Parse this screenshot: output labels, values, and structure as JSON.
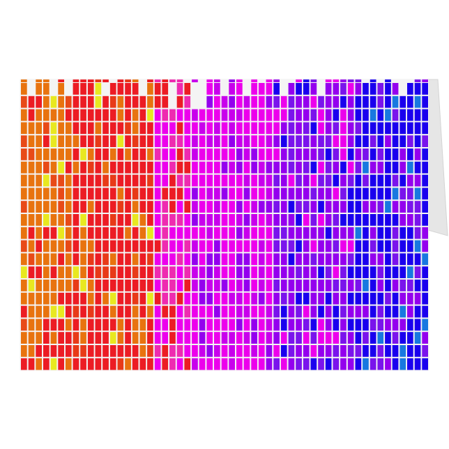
{
  "card": {
    "background_color": "#ffffff",
    "panel_color": "#f4f4f4",
    "grid_line_color": "#ffffff"
  },
  "mosaic": {
    "palette_left_to_right": [
      "#e8730f",
      "#ec1c24",
      "#ee2bb0",
      "#ec00ec",
      "#9400ee",
      "#7a14ec",
      "#1a00ee",
      "#1878e0"
    ],
    "accent_colors": [
      "#e8e820",
      "#88e020"
    ]
  }
}
